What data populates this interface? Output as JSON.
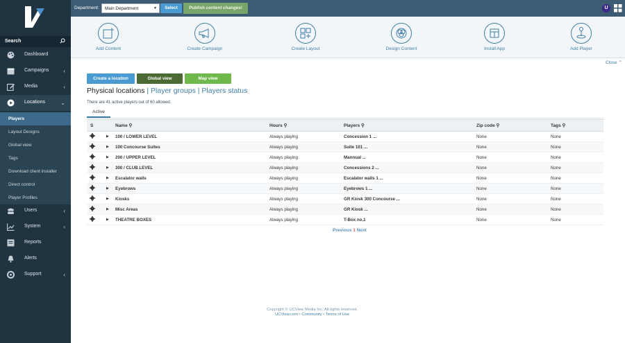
{
  "sidebar": {
    "search_label": "Search",
    "nav": [
      {
        "label": "Dashboard",
        "icon": "palette-icon",
        "chev": ""
      },
      {
        "label": "Campaigns",
        "icon": "calendar-icon",
        "chev": "‹"
      },
      {
        "label": "Media",
        "icon": "edit-icon",
        "chev": "‹"
      },
      {
        "label": "Locations",
        "icon": "play-icon",
        "chev": "⌄"
      }
    ],
    "sub": [
      "Players",
      "Layout Designs",
      "Global view",
      "Tags",
      "Download client installer",
      "Direct control",
      "Player Profiles"
    ],
    "nav2": [
      {
        "label": "Users",
        "icon": "users-icon",
        "chev": "‹"
      },
      {
        "label": "System",
        "icon": "chart-icon",
        "chev": "‹"
      },
      {
        "label": "Reports",
        "icon": "report-icon",
        "chev": ""
      },
      {
        "label": "Alerts",
        "icon": "bell-icon",
        "chev": ""
      },
      {
        "label": "Support",
        "icon": "lifebuoy-icon",
        "chev": "‹"
      }
    ]
  },
  "topbar": {
    "department_label": "Department:",
    "department_value": "Main Department",
    "select_label": "Select",
    "publish_label": "Publish content changes!",
    "user_initial": "U"
  },
  "toolbar": {
    "items": [
      "Add Content",
      "Create Campaign",
      "Create Layout",
      "Design Content",
      "Install App",
      "Add Player"
    ],
    "close_label": "Close"
  },
  "actions": {
    "create_location": "Create a location",
    "global_view": "Global view",
    "map_view": "Map view"
  },
  "heading": {
    "physical": "Physical locations",
    "sep1": " | ",
    "player_groups": "Player groups",
    "sep2": " | ",
    "players_status": "Players status"
  },
  "info_text": "There are 41 active players out of 60 allowed.",
  "tab_active": "Active",
  "table": {
    "headers": [
      "S",
      "Name",
      "Hours",
      "Players",
      "Zip code",
      "Tags"
    ],
    "rows": [
      {
        "name": "100 / LOWER LEVEL",
        "hours": "Always playing",
        "players": "Concession 1 ...",
        "zip": "None",
        "tags": "None"
      },
      {
        "name": "100 Concourse Suites",
        "hours": "Always playing",
        "players": "Suite 101 ...",
        "zip": "None",
        "tags": "None"
      },
      {
        "name": "200 / UPPER LEVEL",
        "hours": "Always playing",
        "players": "Mannual ...",
        "zip": "None",
        "tags": "None"
      },
      {
        "name": "300 / CLUB LEVEL",
        "hours": "Always playing",
        "players": "Concessions 2 ...",
        "zip": "None",
        "tags": "None"
      },
      {
        "name": "Escalator walls",
        "hours": "Always playing",
        "players": "Escalator walls 1 ...",
        "zip": "None",
        "tags": "None"
      },
      {
        "name": "Eyebrows",
        "hours": "Always playing",
        "players": "Eyebrows 1 ...",
        "zip": "None",
        "tags": "None"
      },
      {
        "name": "Kiosks",
        "hours": "Always playing",
        "players": "GR Kiosk 300 Concourse ...",
        "zip": "None",
        "tags": "None"
      },
      {
        "name": "Misc Areas",
        "hours": "Always playing",
        "players": "GR Kiosk ...",
        "zip": "None",
        "tags": "None"
      },
      {
        "name": "THEATRE BOXES",
        "hours": "Always playing",
        "players": "T-Box no.1",
        "zip": "None",
        "tags": "None"
      }
    ]
  },
  "pagination": {
    "previous": "Previous",
    "page": "1",
    "next": "Next"
  },
  "footer": {
    "copyright": "Copyright © UCView Media Inc. All rights reserved.",
    "link1": "UCView.com",
    "link2": "Community",
    "link3": "Terms of Use",
    "dot": "•"
  }
}
